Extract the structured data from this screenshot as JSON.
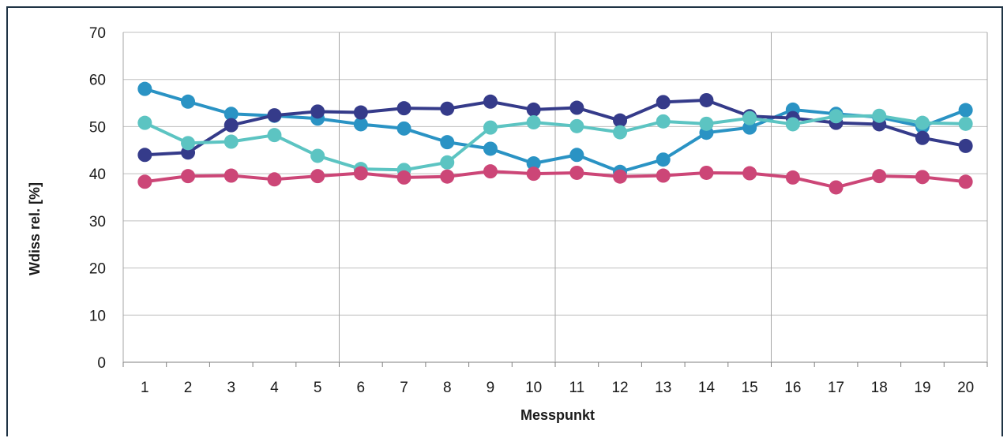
{
  "chart_data": {
    "type": "line",
    "title": "",
    "xlabel": "Messpunkt",
    "ylabel": "Wdiss rel. [%]",
    "x": [
      1,
      2,
      3,
      4,
      5,
      6,
      7,
      8,
      9,
      10,
      11,
      12,
      13,
      14,
      15,
      16,
      17,
      18,
      19,
      20
    ],
    "ylim": [
      0,
      70
    ],
    "yticks": [
      0,
      10,
      20,
      30,
      40,
      50,
      60,
      70
    ],
    "grid": true,
    "series": [
      {
        "color": "#2a93c4",
        "values": [
          58,
          55.3,
          52.7,
          52.3,
          51.7,
          50.5,
          49.6,
          46.7,
          45.3,
          42.2,
          44,
          40.4,
          43,
          48.7,
          49.8,
          53.6,
          52.7,
          52,
          50,
          53.5
        ]
      },
      {
        "color": "#353b8a",
        "values": [
          44,
          44.5,
          50.3,
          52.4,
          53.2,
          53,
          53.9,
          53.8,
          55.3,
          53.6,
          54,
          51.3,
          55.2,
          55.6,
          52.2,
          51.8,
          50.8,
          50.5,
          47.6,
          45.9
        ]
      },
      {
        "color": "#5cc4c2",
        "values": [
          50.8,
          46.5,
          46.8,
          48.2,
          43.8,
          41,
          40.8,
          42.4,
          49.8,
          50.9,
          50.1,
          48.8,
          51.1,
          50.6,
          51.8,
          50.5,
          52.2,
          52.3,
          50.8,
          50.6
        ]
      },
      {
        "color": "#cc4677",
        "values": [
          38.3,
          39.5,
          39.6,
          38.8,
          39.5,
          40.1,
          39.2,
          39.4,
          40.5,
          40,
          40.2,
          39.4,
          39.6,
          40.2,
          40.1,
          39.2,
          37.1,
          39.5,
          39.3,
          38.3
        ]
      }
    ]
  }
}
